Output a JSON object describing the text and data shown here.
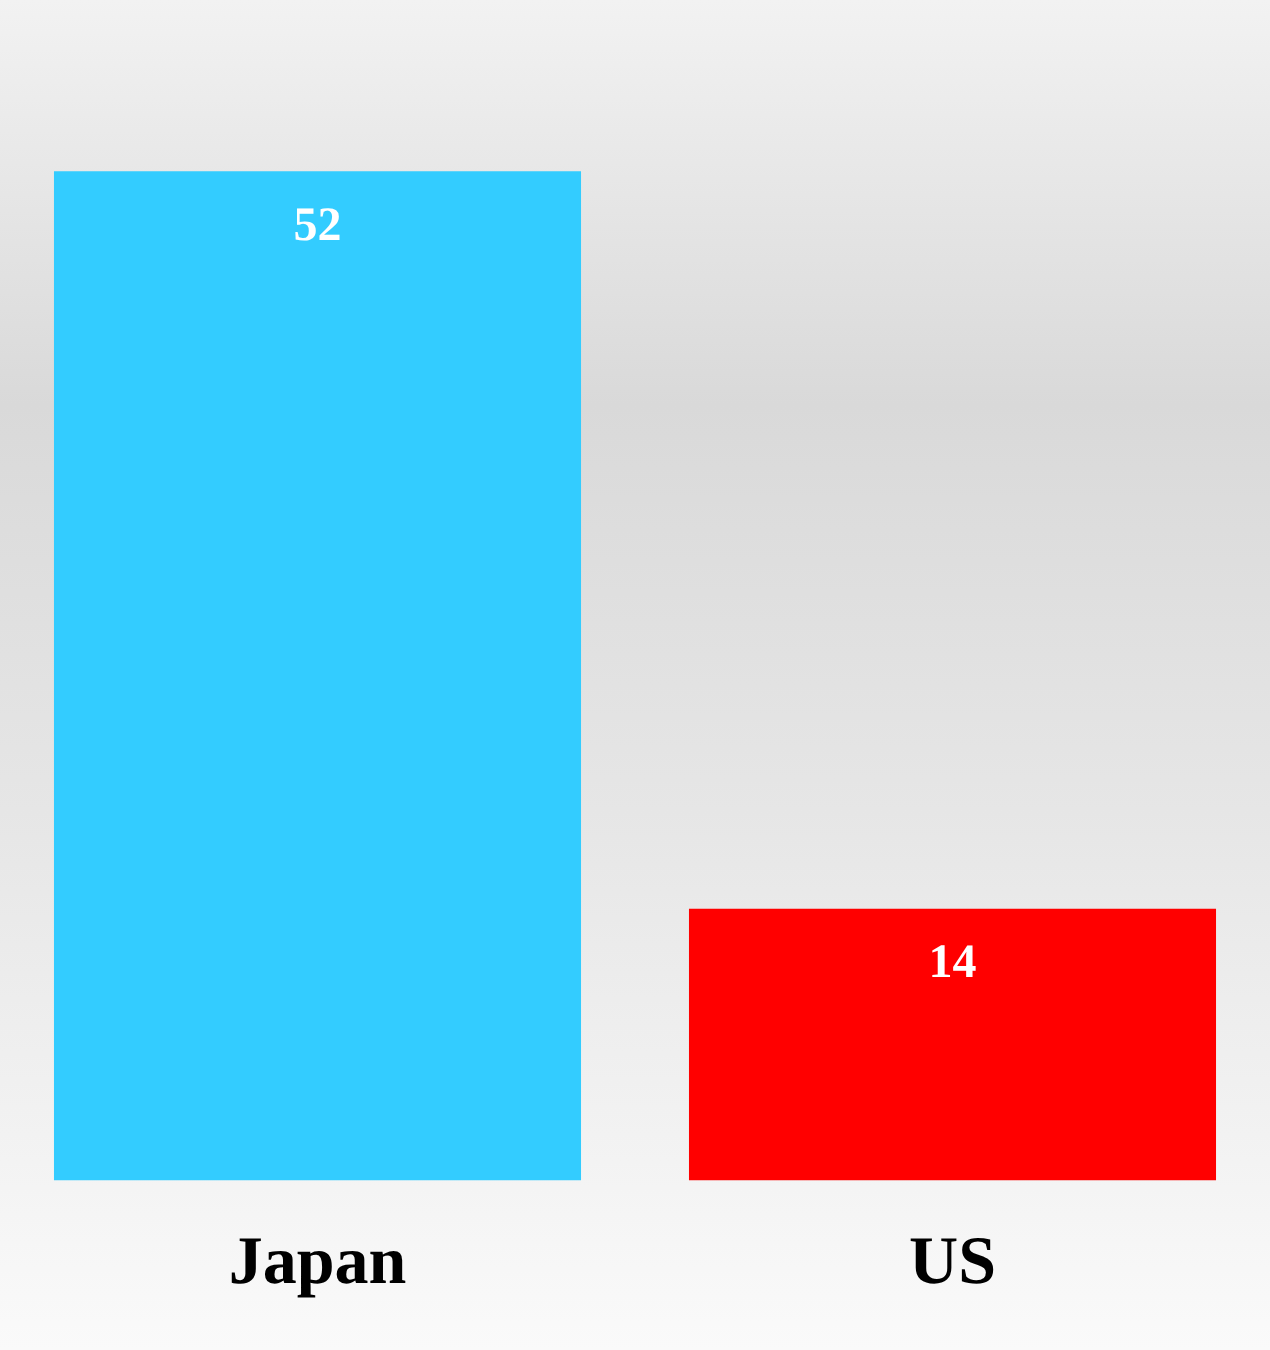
{
  "chart_data": {
    "type": "bar",
    "categories": [
      "Japan",
      "US"
    ],
    "values": [
      52,
      14
    ],
    "colors": [
      "#33ccff",
      "#ff0000"
    ],
    "data_labels": true,
    "tick_labels": "x",
    "grid": false,
    "legend": false
  }
}
